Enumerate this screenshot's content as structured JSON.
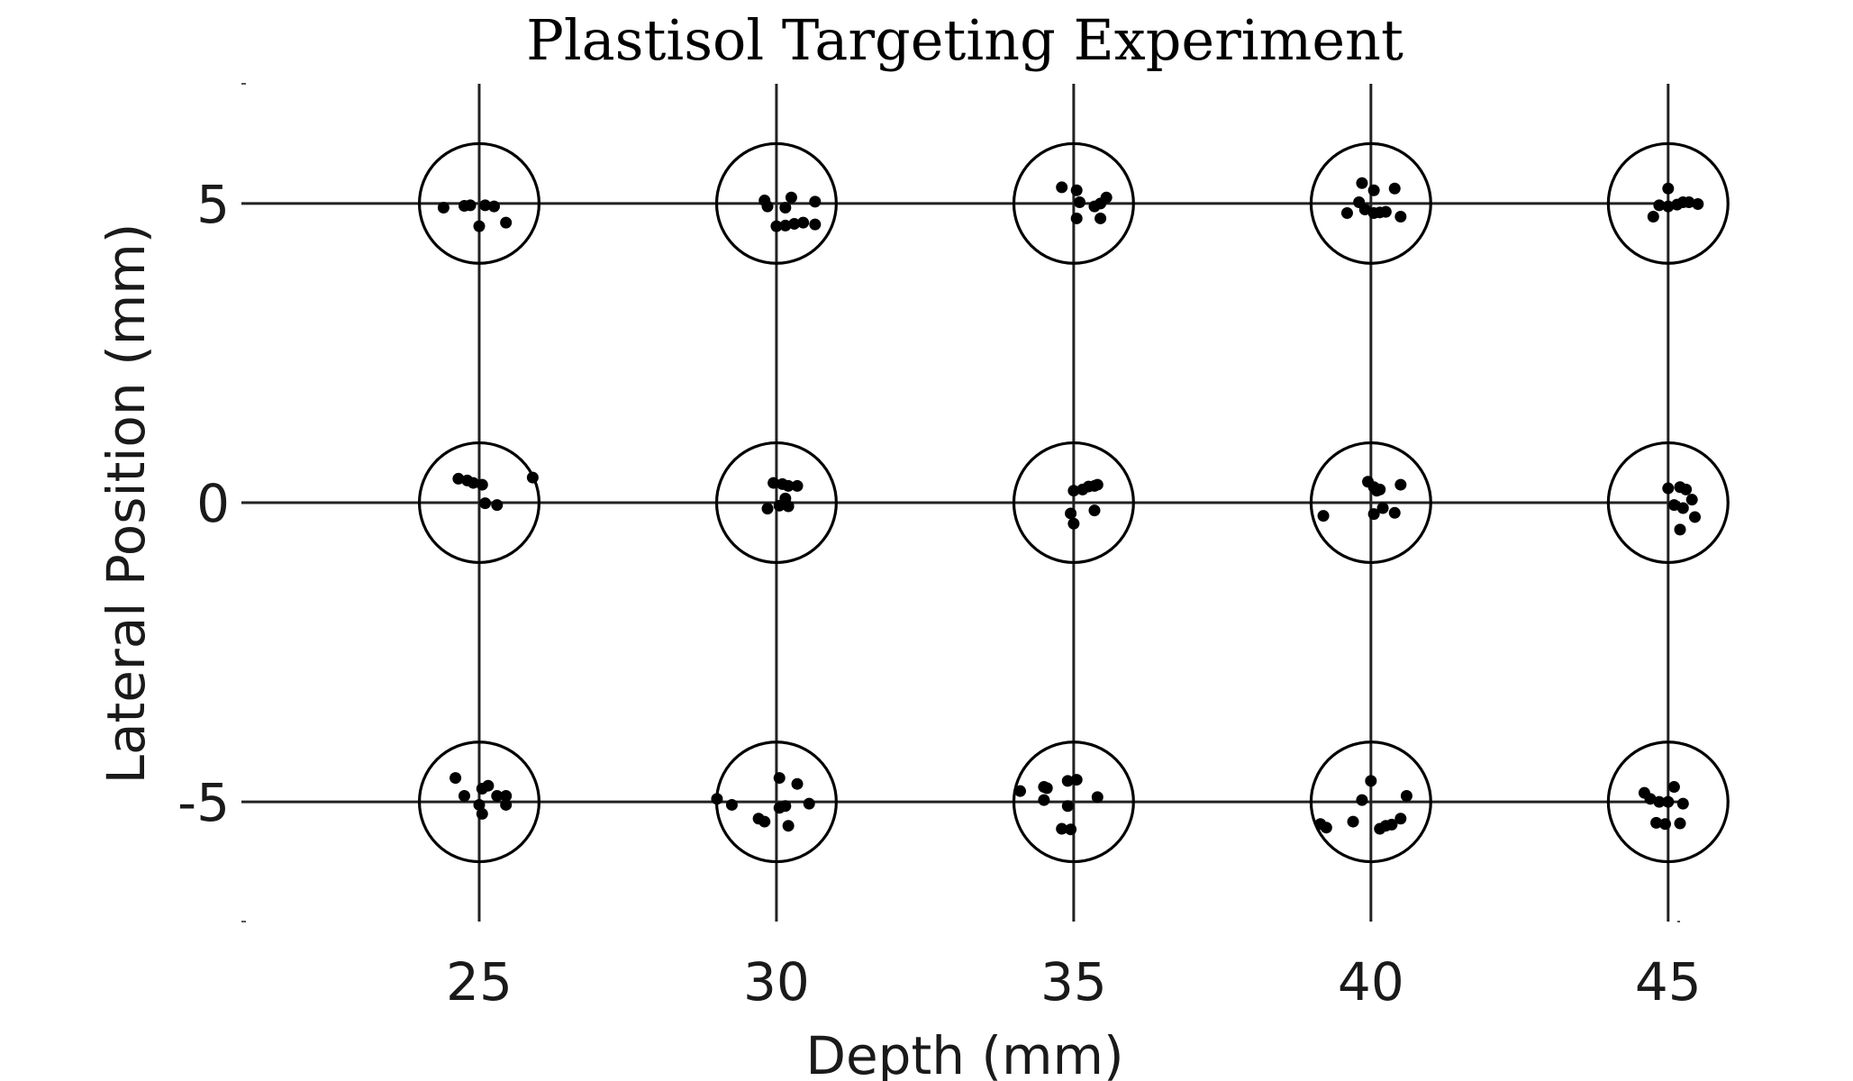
{
  "chart_data": {
    "type": "scatter",
    "title": "Plastisol Targeting Experiment",
    "xlabel": "Depth (mm)",
    "ylabel": "Lateral Position (mm)",
    "xlim": [
      21,
      45.2
    ],
    "ylim": [
      -7,
      7
    ],
    "xticks": [
      "25",
      "30",
      "35",
      "40",
      "45"
    ],
    "yticks": [
      "5",
      "0",
      "-5"
    ],
    "xtick_values": [
      25,
      30,
      35,
      40,
      45
    ],
    "ytick_values": [
      5,
      0,
      -5
    ],
    "grid": true,
    "target_radius_mm": 1,
    "targets": [
      {
        "x": 25,
        "y": 5
      },
      {
        "x": 30,
        "y": 5
      },
      {
        "x": 35,
        "y": 5
      },
      {
        "x": 40,
        "y": 5
      },
      {
        "x": 45,
        "y": 5
      },
      {
        "x": 25,
        "y": 0
      },
      {
        "x": 30,
        "y": 0
      },
      {
        "x": 35,
        "y": 0
      },
      {
        "x": 40,
        "y": 0
      },
      {
        "x": 45,
        "y": 0
      },
      {
        "x": 25,
        "y": -5
      },
      {
        "x": 30,
        "y": -5
      },
      {
        "x": 35,
        "y": -5
      },
      {
        "x": 40,
        "y": -5
      },
      {
        "x": 45,
        "y": -5
      }
    ],
    "points": [
      [
        24.4,
        4.93
      ],
      [
        24.75,
        4.96
      ],
      [
        24.85,
        4.97
      ],
      [
        25.1,
        4.97
      ],
      [
        25.25,
        4.95
      ],
      [
        25.0,
        4.62
      ],
      [
        25.45,
        4.68
      ],
      [
        29.8,
        5.05
      ],
      [
        29.85,
        4.95
      ],
      [
        30.25,
        5.1
      ],
      [
        30.15,
        4.93
      ],
      [
        30.65,
        5.03
      ],
      [
        30.0,
        4.62
      ],
      [
        30.15,
        4.63
      ],
      [
        30.3,
        4.66
      ],
      [
        30.45,
        4.68
      ],
      [
        30.65,
        4.65
      ],
      [
        34.8,
        5.27
      ],
      [
        35.05,
        5.22
      ],
      [
        35.1,
        5.02
      ],
      [
        35.35,
        4.95
      ],
      [
        35.45,
        5.0
      ],
      [
        35.55,
        5.1
      ],
      [
        35.05,
        4.75
      ],
      [
        35.45,
        4.75
      ],
      [
        39.85,
        5.34
      ],
      [
        40.05,
        5.22
      ],
      [
        40.4,
        5.25
      ],
      [
        39.8,
        5.02
      ],
      [
        39.9,
        4.9
      ],
      [
        40.05,
        4.84
      ],
      [
        40.15,
        4.85
      ],
      [
        40.25,
        4.86
      ],
      [
        39.6,
        4.84
      ],
      [
        40.5,
        4.78
      ],
      [
        45.0,
        5.25
      ],
      [
        44.85,
        4.97
      ],
      [
        45.0,
        4.95
      ],
      [
        45.15,
        4.98
      ],
      [
        45.25,
        5.02
      ],
      [
        45.35,
        5.02
      ],
      [
        45.5,
        4.99
      ],
      [
        44.75,
        4.78
      ],
      [
        24.65,
        0.4
      ],
      [
        24.8,
        0.37
      ],
      [
        24.9,
        0.33
      ],
      [
        25.05,
        0.3
      ],
      [
        25.1,
        -0.01
      ],
      [
        25.3,
        -0.04
      ],
      [
        25.9,
        0.42
      ],
      [
        29.95,
        0.33
      ],
      [
        30.1,
        0.31
      ],
      [
        30.2,
        0.28
      ],
      [
        30.35,
        0.28
      ],
      [
        30.15,
        0.07
      ],
      [
        30.2,
        -0.06
      ],
      [
        30.05,
        -0.05
      ],
      [
        29.85,
        -0.1
      ],
      [
        35.0,
        0.2
      ],
      [
        35.15,
        0.22
      ],
      [
        35.25,
        0.27
      ],
      [
        35.35,
        0.28
      ],
      [
        35.4,
        0.3
      ],
      [
        35.35,
        -0.13
      ],
      [
        34.95,
        -0.18
      ],
      [
        35.0,
        -0.35
      ],
      [
        39.95,
        0.35
      ],
      [
        40.05,
        0.26
      ],
      [
        40.1,
        0.2
      ],
      [
        40.5,
        0.3
      ],
      [
        40.15,
        0.22
      ],
      [
        40.2,
        -0.09
      ],
      [
        40.4,
        -0.17
      ],
      [
        40.05,
        -0.19
      ],
      [
        39.2,
        -0.22
      ],
      [
        45.0,
        0.24
      ],
      [
        45.2,
        0.26
      ],
      [
        45.3,
        0.22
      ],
      [
        45.1,
        -0.04
      ],
      [
        45.25,
        -0.09
      ],
      [
        45.4,
        0.05
      ],
      [
        45.45,
        -0.24
      ],
      [
        45.2,
        -0.45
      ],
      [
        24.6,
        -4.6
      ],
      [
        24.75,
        -4.9
      ],
      [
        25.05,
        -4.78
      ],
      [
        25.15,
        -4.73
      ],
      [
        25.3,
        -4.9
      ],
      [
        25.45,
        -4.9
      ],
      [
        25.0,
        -5.05
      ],
      [
        25.05,
        -5.2
      ],
      [
        25.45,
        -5.05
      ],
      [
        29.0,
        -4.95
      ],
      [
        29.25,
        -5.05
      ],
      [
        29.7,
        -5.28
      ],
      [
        29.8,
        -5.33
      ],
      [
        30.05,
        -4.6
      ],
      [
        30.35,
        -4.7
      ],
      [
        30.55,
        -5.03
      ],
      [
        30.15,
        -5.07
      ],
      [
        30.05,
        -5.1
      ],
      [
        30.2,
        -5.4
      ],
      [
        34.1,
        -4.82
      ],
      [
        34.5,
        -4.75
      ],
      [
        34.55,
        -4.77
      ],
      [
        34.9,
        -4.65
      ],
      [
        35.05,
        -4.63
      ],
      [
        34.5,
        -4.97
      ],
      [
        35.4,
        -4.92
      ],
      [
        34.9,
        -5.07
      ],
      [
        34.8,
        -5.45
      ],
      [
        34.95,
        -5.46
      ],
      [
        39.15,
        -5.37
      ],
      [
        39.25,
        -5.43
      ],
      [
        39.7,
        -5.33
      ],
      [
        39.85,
        -4.97
      ],
      [
        40.0,
        -4.65
      ],
      [
        40.15,
        -5.45
      ],
      [
        40.25,
        -5.4
      ],
      [
        40.35,
        -5.38
      ],
      [
        40.5,
        -5.28
      ],
      [
        40.6,
        -4.9
      ],
      [
        44.6,
        -4.85
      ],
      [
        44.7,
        -4.95
      ],
      [
        44.85,
        -5.0
      ],
      [
        45.0,
        -5.0
      ],
      [
        45.1,
        -4.75
      ],
      [
        45.25,
        -5.03
      ],
      [
        44.8,
        -5.35
      ],
      [
        44.95,
        -5.37
      ],
      [
        45.2,
        -5.36
      ]
    ]
  }
}
